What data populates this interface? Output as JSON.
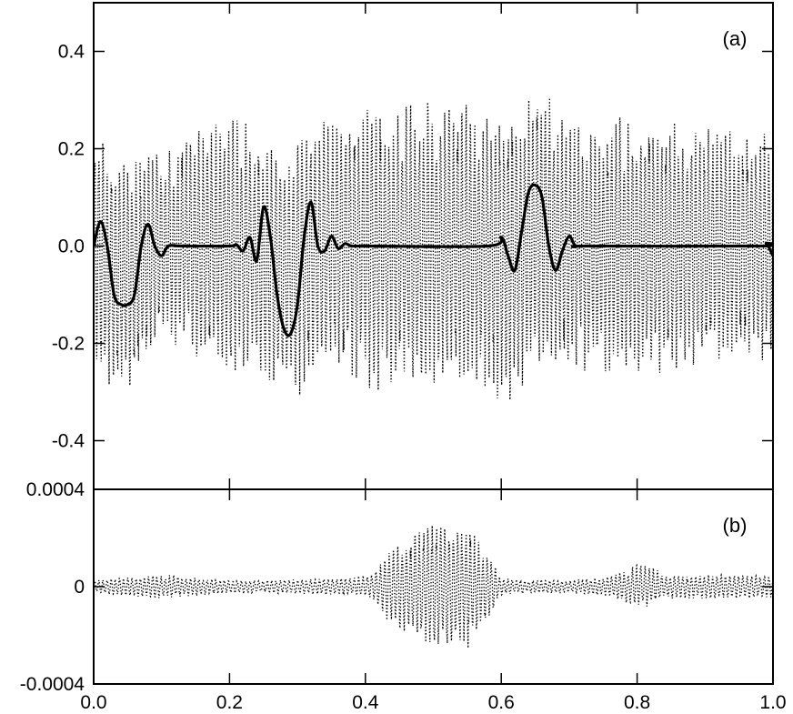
{
  "chart_data": [
    {
      "panel_label": "(a)",
      "type": "line",
      "x_range": [
        0.0,
        1.0
      ],
      "y_range": [
        -0.5,
        0.5
      ],
      "y_ticks": [
        0.4,
        0.2,
        0.0,
        -0.2,
        -0.4
      ],
      "y_tick_labels": [
        "0.4",
        "0.2",
        "0.0",
        "-0.2",
        "-0.4"
      ],
      "grid": false,
      "series": [
        {
          "style": "dotted",
          "description": "rapidly oscillating signal with amplitude mostly within ±0.3",
          "envelope": {
            "x": [
              0.0,
              0.05,
              0.1,
              0.15,
              0.2,
              0.25,
              0.3,
              0.35,
              0.4,
              0.45,
              0.5,
              0.55,
              0.6,
              0.65,
              0.7,
              0.75,
              0.8,
              0.85,
              0.9,
              0.95,
              1.0
            ],
            "y": [
              0.26,
              0.25,
              0.2,
              0.24,
              0.27,
              0.26,
              0.28,
              0.27,
              0.3,
              0.31,
              0.31,
              0.3,
              0.31,
              0.3,
              0.26,
              0.26,
              0.29,
              0.26,
              0.25,
              0.24,
              0.25
            ]
          },
          "offset": {
            "x": [
              0.0,
              0.03,
              0.06,
              0.1,
              0.2,
              0.28,
              0.35,
              0.45,
              0.55,
              0.62,
              0.66,
              0.7,
              0.8,
              0.9,
              1.0
            ],
            "y": [
              0.0,
              -0.05,
              -0.05,
              0.0,
              0.0,
              -0.04,
              0.0,
              0.0,
              0.0,
              -0.02,
              0.04,
              0.0,
              0.0,
              0.0,
              0.0
            ]
          },
          "frequency_cycles": 160
        },
        {
          "style": "solid",
          "description": "smooth localized bumps, zero elsewhere",
          "x": [
            0.0,
            0.01,
            0.02,
            0.03,
            0.04,
            0.05,
            0.06,
            0.07,
            0.08,
            0.09,
            0.1,
            0.11,
            0.13,
            0.2,
            0.21,
            0.22,
            0.23,
            0.24,
            0.25,
            0.26,
            0.27,
            0.28,
            0.29,
            0.3,
            0.31,
            0.32,
            0.33,
            0.34,
            0.35,
            0.36,
            0.37,
            0.38,
            0.4,
            0.58,
            0.6,
            0.61,
            0.62,
            0.63,
            0.64,
            0.65,
            0.66,
            0.67,
            0.68,
            0.69,
            0.7,
            0.71,
            0.73,
            0.98,
            0.99,
            1.0
          ],
          "y": [
            0.0,
            0.05,
            0.0,
            -0.1,
            -0.12,
            -0.12,
            -0.1,
            0.0,
            0.045,
            0.0,
            -0.02,
            0.0,
            0.0,
            0.0,
            0.003,
            -0.01,
            0.018,
            -0.03,
            0.08,
            0.02,
            -0.1,
            -0.17,
            -0.18,
            -0.12,
            0.02,
            0.09,
            0.0,
            -0.01,
            0.02,
            -0.005,
            0.005,
            0.0,
            0.0,
            0.0,
            0.018,
            -0.02,
            -0.05,
            0.03,
            0.11,
            0.125,
            0.1,
            0.0,
            -0.05,
            -0.01,
            0.02,
            0.0,
            0.0,
            0.0,
            0.005,
            -0.02
          ]
        }
      ]
    },
    {
      "panel_label": "(b)",
      "type": "line",
      "x_range": [
        0.0,
        1.0
      ],
      "x_ticks": [
        0.0,
        0.2,
        0.4,
        0.6,
        0.8,
        1.0
      ],
      "x_tick_labels": [
        "0.0",
        "0.2",
        "0.4",
        "0.6",
        "0.8",
        "1.0"
      ],
      "y_range": [
        -0.0004,
        0.0004
      ],
      "y_ticks": [
        0.0004,
        0.0,
        -0.0004
      ],
      "y_tick_labels": [
        "0.0004",
        "0",
        "-0.0004"
      ],
      "grid": false,
      "series": [
        {
          "style": "dotted",
          "description": "small-amplitude oscillating residual with a burst near x=0.5",
          "envelope": {
            "x": [
              0.0,
              0.05,
              0.1,
              0.2,
              0.3,
              0.38,
              0.4,
              0.45,
              0.5,
              0.55,
              0.58,
              0.6,
              0.62,
              0.7,
              0.75,
              0.78,
              0.8,
              0.85,
              0.9,
              0.95,
              1.0
            ],
            "y": [
              3e-05,
              4e-05,
              5e-05,
              3e-05,
              3e-05,
              4e-05,
              5e-05,
              0.00018,
              0.00028,
              0.00026,
              0.00015,
              4e-05,
              3e-05,
              3e-05,
              4e-05,
              7e-05,
              0.0001,
              5e-05,
              5e-05,
              5e-05,
              5e-05
            ]
          },
          "frequency_cycles": 160
        }
      ]
    }
  ]
}
